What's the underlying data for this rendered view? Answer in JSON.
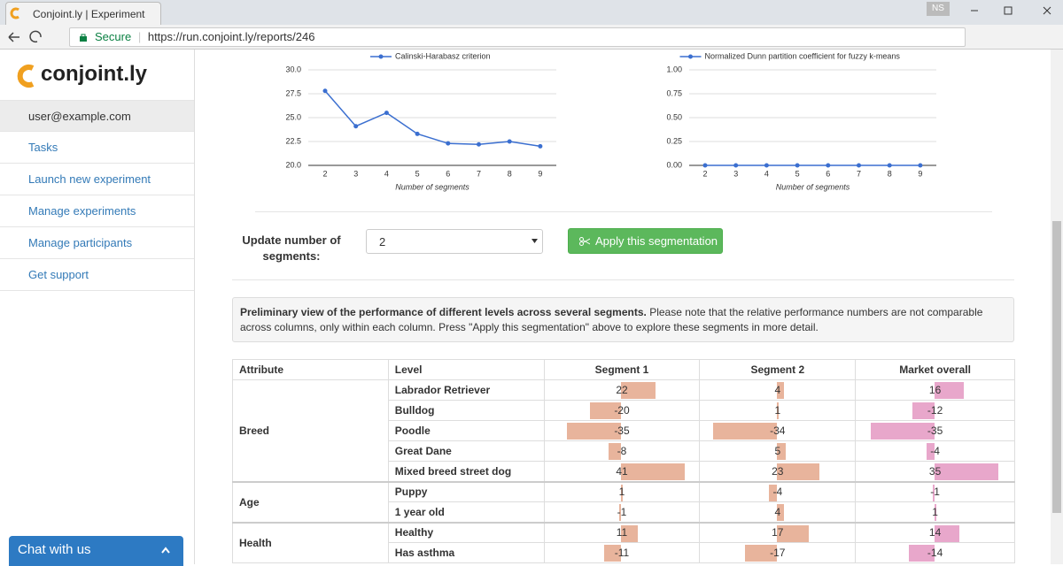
{
  "browser": {
    "tab_title": "Conjoint.ly | Experiment",
    "secure": "Secure",
    "url": "https://run.conjoint.ly/reports/246",
    "profile": "NS"
  },
  "sidebar": {
    "logo": "conjoint.ly",
    "user": "user@example.com",
    "items": [
      "Tasks",
      "Launch new experiment",
      "Manage experiments",
      "Manage participants",
      "Get support"
    ],
    "chat": "Chat with us"
  },
  "chart_data": [
    {
      "type": "line",
      "legend": "Calinski-Harabasz criterion",
      "x_label": "Number of segments",
      "categories": [
        "2",
        "3",
        "4",
        "5",
        "6",
        "7",
        "8",
        "9"
      ],
      "series": [
        {
          "name": "Calinski-Harabasz criterion",
          "color": "#3b6fd0",
          "values": [
            27.8,
            24.1,
            25.5,
            23.3,
            22.3,
            22.2,
            22.5,
            22.0
          ]
        }
      ],
      "ylim": [
        20,
        30
      ],
      "yticks": [
        {
          "value": 20,
          "label": "20.0"
        },
        {
          "value": 22.5,
          "label": "22.5"
        },
        {
          "value": 25,
          "label": "25.0"
        },
        {
          "value": 27.5,
          "label": "27.5"
        },
        {
          "value": 30,
          "label": "30.0"
        }
      ],
      "grid": true
    },
    {
      "type": "line",
      "legend": "Normalized Dunn partition coefficient for fuzzy k-means",
      "x_label": "Number of segments",
      "categories": [
        "2",
        "3",
        "4",
        "5",
        "6",
        "7",
        "8",
        "9"
      ],
      "series": [
        {
          "name": "Normalized Dunn partition coefficient for fuzzy k-means",
          "color": "#3b6fd0",
          "values": [
            0,
            0,
            0,
            0,
            0,
            0,
            0,
            0
          ]
        }
      ],
      "ylim": [
        0,
        1
      ],
      "yticks": [
        {
          "value": 0,
          "label": "0.00"
        },
        {
          "value": 0.25,
          "label": "0.25"
        },
        {
          "value": 0.5,
          "label": "0.50"
        },
        {
          "value": 0.75,
          "label": "0.75"
        },
        {
          "value": 1,
          "label": "1.00"
        }
      ],
      "grid": true
    }
  ],
  "form": {
    "label": "Update number of segments:",
    "selected": "2",
    "button": "Apply this segmentation"
  },
  "note": {
    "bold": "Preliminary view of the performance of different levels across several segments.",
    "text": "Please note that the relative performance numbers are not comparable across columns, only within each column. Press \"Apply this segmentation\" above to explore these segments in more detail."
  },
  "table": {
    "headers": [
      "Attribute",
      "Level",
      "Segment 1",
      "Segment 2",
      "Market overall"
    ],
    "bar_colors": [
      "#e8b49c",
      "#e8b49c",
      "#e8a7cb"
    ],
    "groups": [
      {
        "attribute": "Breed",
        "rows": [
          {
            "level": "Labrador Retriever",
            "values": [
              22,
              4,
              16
            ]
          },
          {
            "level": "Bulldog",
            "values": [
              -20,
              1,
              -12
            ]
          },
          {
            "level": "Poodle",
            "values": [
              -35,
              -34,
              -35
            ]
          },
          {
            "level": "Great Dane",
            "values": [
              -8,
              5,
              -4
            ]
          },
          {
            "level": "Mixed breed street dog",
            "values": [
              41,
              23,
              35
            ]
          }
        ]
      },
      {
        "attribute": "Age",
        "rows": [
          {
            "level": "Puppy",
            "values": [
              1,
              -4,
              -1
            ]
          },
          {
            "level": "1 year old",
            "values": [
              -1,
              4,
              1
            ]
          }
        ]
      },
      {
        "attribute": "Health",
        "rows": [
          {
            "level": "Healthy",
            "values": [
              11,
              17,
              14
            ]
          },
          {
            "level": "Has asthma",
            "values": [
              -11,
              -17,
              -14
            ]
          }
        ]
      }
    ]
  }
}
